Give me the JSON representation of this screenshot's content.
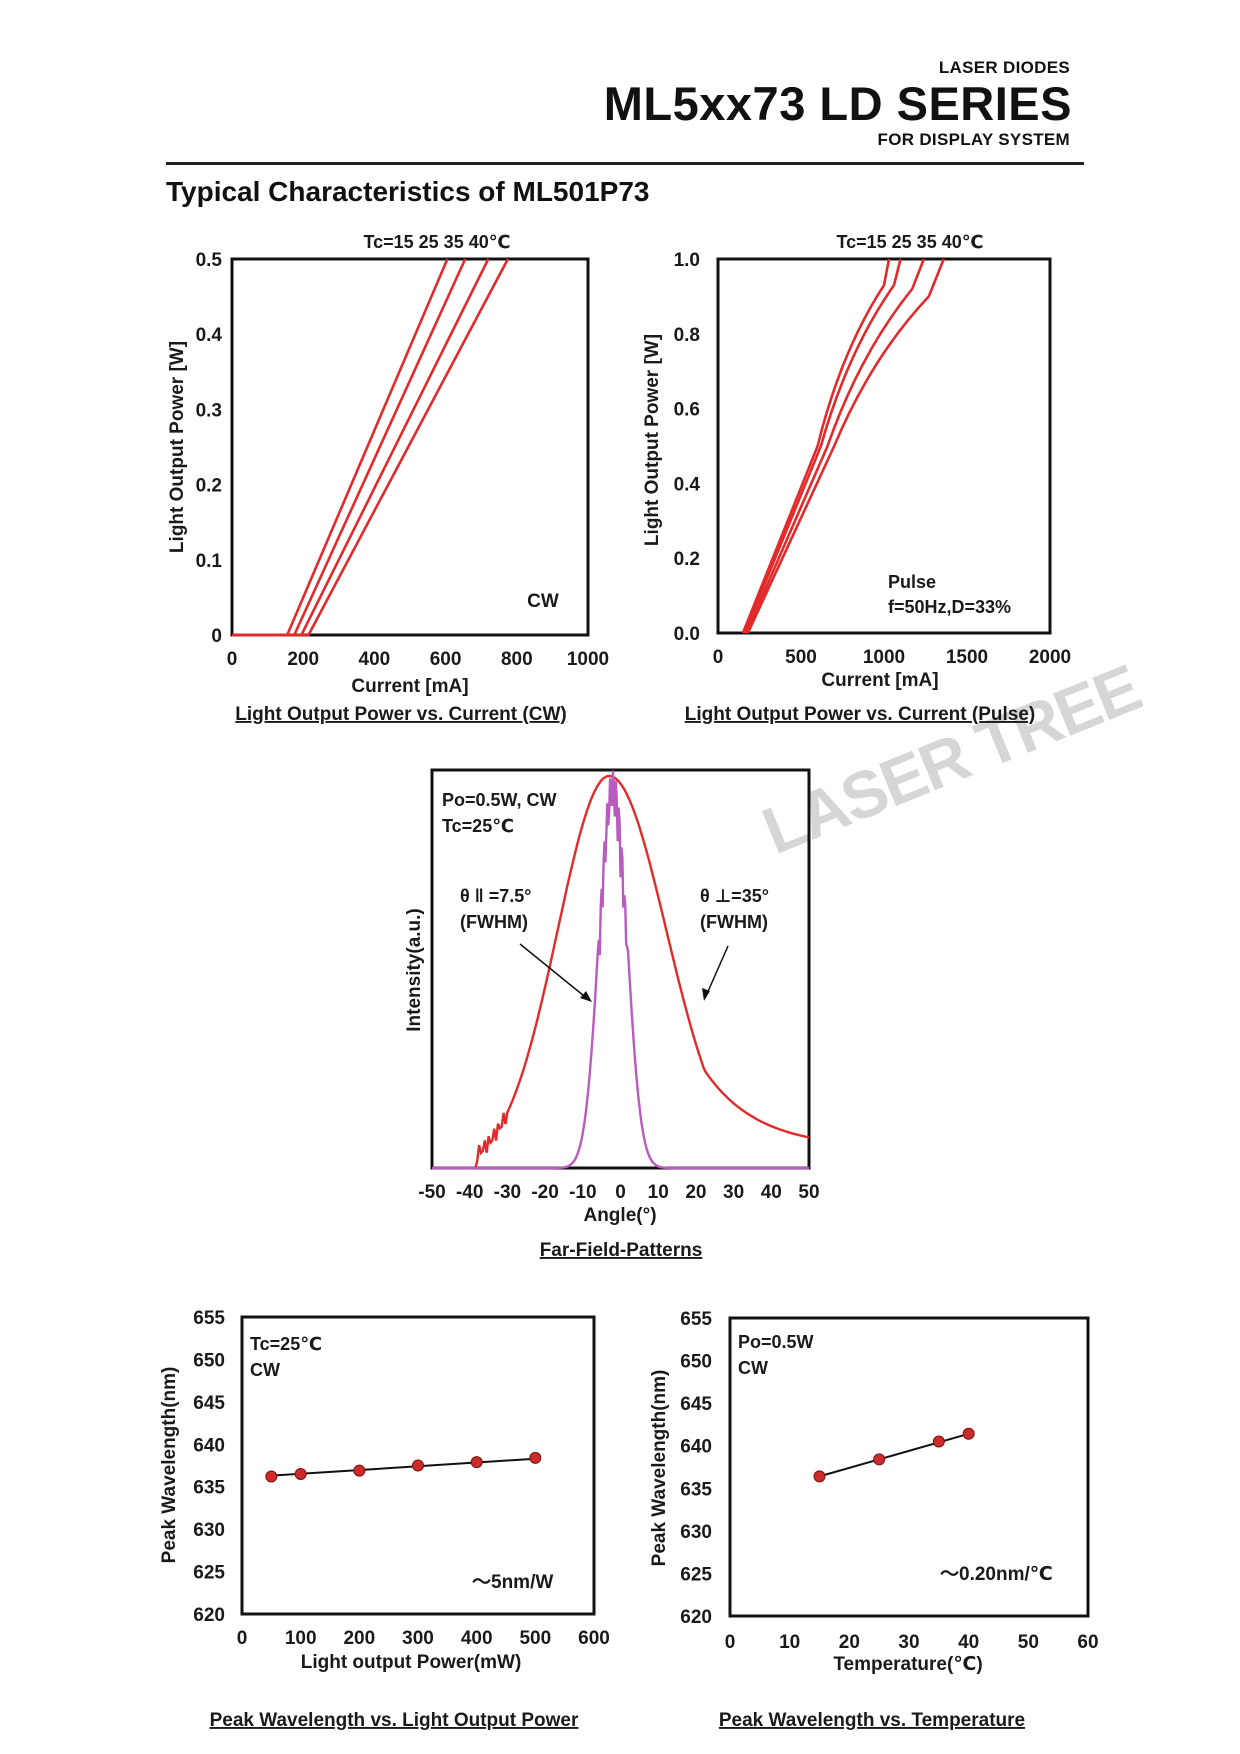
{
  "header": {
    "category": "LASER DIODES",
    "series": "ML5xx73 LD SERIES",
    "subtitle": "FOR DISPLAY SYSTEM"
  },
  "section_title": "Typical Characteristics of ML501P73",
  "watermark": "LASER TREE",
  "colors": {
    "red": "#e32a2a",
    "purple": "#b85cbf",
    "line": "#111111",
    "dot": "#cc2b2b"
  },
  "chart_data": [
    {
      "id": "li_cw",
      "type": "line",
      "title": "Light Output Power vs. Current (CW)",
      "xlabel": "Current [mA]",
      "ylabel": "Light Output Power [W]",
      "xlim": [
        0,
        1000
      ],
      "ylim": [
        0,
        0.5
      ],
      "xticks": [
        "0",
        "200",
        "400",
        "600",
        "800",
        "1000"
      ],
      "yticks": [
        "0",
        "0.1",
        "0.2",
        "0.3",
        "0.4",
        "0.5"
      ],
      "annotation_top": "Tc=15 25 35 40℃",
      "annotation_mode": "CW",
      "series": [
        {
          "name": "15℃",
          "x": [
            0,
            155,
            605
          ],
          "y": [
            0,
            0,
            0.5
          ]
        },
        {
          "name": "25℃",
          "x": [
            0,
            175,
            655
          ],
          "y": [
            0,
            0,
            0.5
          ]
        },
        {
          "name": "35℃",
          "x": [
            0,
            195,
            720
          ],
          "y": [
            0,
            0,
            0.5
          ]
        },
        {
          "name": "40℃",
          "x": [
            0,
            215,
            775
          ],
          "y": [
            0,
            0,
            0.5
          ]
        }
      ]
    },
    {
      "id": "li_pulse",
      "type": "line",
      "title": "Light Output Power vs. Current (Pulse)",
      "xlabel": "Current [mA]",
      "ylabel": "Light Output Power [W]",
      "xlim": [
        0,
        2000
      ],
      "ylim": [
        0,
        1.0
      ],
      "xticks": [
        "0",
        "500",
        "1000",
        "1500",
        "2000"
      ],
      "yticks": [
        "0.0",
        "0.2",
        "0.4",
        "0.6",
        "0.8",
        "1.0"
      ],
      "annotation_top": "Tc=15 25 35 40℃",
      "annotation_mode_1": "Pulse",
      "annotation_mode_2": "f=50Hz,D=33%",
      "series": [
        {
          "name": "15℃",
          "x": [
            150,
            600,
            1000,
            1030
          ],
          "y": [
            0,
            0.5,
            0.93,
            1.0
          ]
        },
        {
          "name": "25℃",
          "x": [
            160,
            620,
            1060,
            1100
          ],
          "y": [
            0,
            0.5,
            0.93,
            1.0
          ]
        },
        {
          "name": "35℃",
          "x": [
            170,
            660,
            1170,
            1240
          ],
          "y": [
            0,
            0.5,
            0.92,
            1.0
          ]
        },
        {
          "name": "40℃",
          "x": [
            180,
            700,
            1270,
            1360
          ],
          "y": [
            0,
            0.5,
            0.9,
            1.0
          ]
        }
      ]
    },
    {
      "id": "ffp",
      "type": "line",
      "title": "Far-Field-Patterns",
      "xlabel": "Angle(°)",
      "ylabel": "Intensity(a.u.)",
      "xlim": [
        -50,
        50
      ],
      "ylim": [
        0,
        1
      ],
      "xticks": [
        "-50",
        "-40",
        "-30",
        "-20",
        "-10",
        "0",
        "10",
        "20",
        "30",
        "40",
        "50"
      ],
      "annotation_cond_1": "Po=0.5W, CW",
      "annotation_cond_2": "Tc=25℃",
      "annotation_par_1": "θ ‖ =7.5°",
      "annotation_par_2": "(FWHM)",
      "annotation_perp_1": "θ ⊥=35°",
      "annotation_perp_2": "(FWHM)",
      "series": [
        {
          "name": "θ⊥ (perpendicular)",
          "fwhm": 35,
          "center": -3,
          "cutoff_left": -38,
          "end_value": 0.05
        },
        {
          "name": "θ‖ (parallel)",
          "fwhm": 7.5,
          "center": -2
        }
      ]
    },
    {
      "id": "wl_power",
      "type": "scatter",
      "title": "Peak Wavelength vs. Light Output Power",
      "xlabel": "Light output Power(mW)",
      "ylabel": "Peak Wavelength(nm)",
      "xlim": [
        0,
        600
      ],
      "ylim": [
        620,
        655
      ],
      "xticks": [
        "0",
        "100",
        "200",
        "300",
        "400",
        "500",
        "600"
      ],
      "yticks": [
        "620",
        "625",
        "630",
        "635",
        "640",
        "645",
        "650",
        "655"
      ],
      "annotation_cond_1": "Tc=25℃",
      "annotation_cond_2": "CW",
      "annotation_slope": "～5nm/W",
      "x": [
        50,
        100,
        200,
        300,
        400,
        500
      ],
      "y": [
        636.2,
        636.5,
        636.9,
        637.5,
        637.9,
        638.4
      ],
      "fit": {
        "x": [
          50,
          500
        ],
        "y": [
          636.3,
          638.3
        ]
      }
    },
    {
      "id": "wl_temp",
      "type": "scatter",
      "title": "Peak Wavelength vs. Temperature",
      "xlabel": "Temperature(℃)",
      "ylabel": "Peak Wavelength(nm)",
      "xlim": [
        0,
        60
      ],
      "ylim": [
        620,
        655
      ],
      "xticks": [
        "0",
        "10",
        "20",
        "30",
        "40",
        "50",
        "60"
      ],
      "yticks": [
        "620",
        "625",
        "630",
        "635",
        "640",
        "645",
        "650",
        "655"
      ],
      "annotation_cond_1": "Po=0.5W",
      "annotation_cond_2": "CW",
      "annotation_slope": "～0.20nm/℃",
      "x": [
        15,
        25,
        35,
        40
      ],
      "y": [
        636.4,
        638.4,
        640.5,
        641.4
      ],
      "fit": {
        "x": [
          15,
          40
        ],
        "y": [
          636.4,
          641.4
        ]
      }
    }
  ]
}
